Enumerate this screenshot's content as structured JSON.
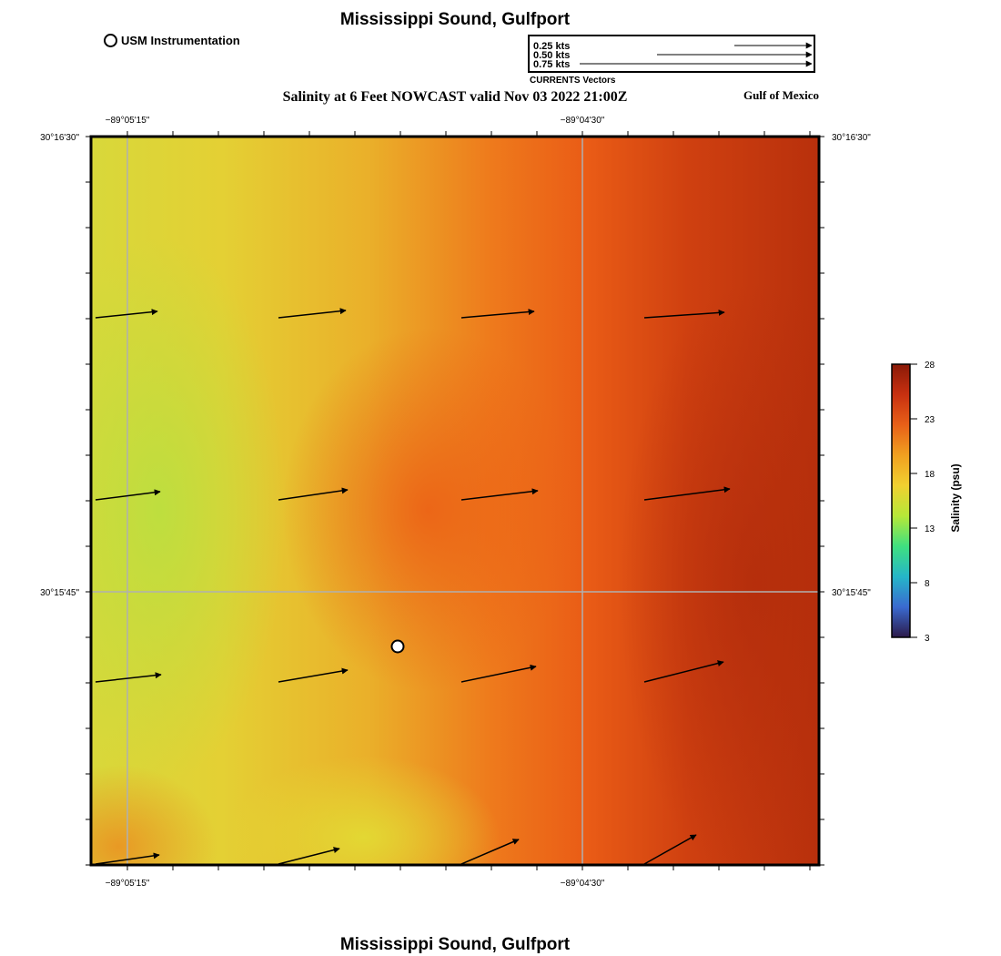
{
  "header": {
    "title": "Mississippi Sound, Gulfport",
    "station_legend": "USM Instrumentation",
    "subtitle": "Salinity at 6 Feet NOWCAST valid Nov 03 2022 21:00Z",
    "region": "Gulf of Mexico"
  },
  "vector_legend": {
    "label": "CURRENTS Vectors",
    "entries": [
      {
        "label": "0.25 kts",
        "speed": 0.25
      },
      {
        "label": "0.50 kts",
        "speed": 0.5
      },
      {
        "label": "0.75 kts",
        "speed": 0.75
      }
    ]
  },
  "axes": {
    "lon_ticks": [
      "−89°05'15\"",
      "−89°04'30\""
    ],
    "lat_ticks": [
      "30°16'30\"",
      "30°15'45\""
    ]
  },
  "colorbar": {
    "label": "Salinity (psu)",
    "ticks": [
      "28",
      "23",
      "18",
      "13",
      "8",
      "3"
    ],
    "min": 3,
    "max": 28,
    "colors": [
      "#2c1a4a",
      "#3a6ad0",
      "#25b6c8",
      "#3fe080",
      "#b6e838",
      "#f0d030",
      "#f0a020",
      "#e86018",
      "#c83010",
      "#8a1a08"
    ]
  },
  "station": {
    "name": "USM Instrumentation"
  },
  "current_vectors": [
    {
      "row": 0,
      "col": 0,
      "dx": 68,
      "dy": -7
    },
    {
      "row": 0,
      "col": 1,
      "dx": 74,
      "dy": -8
    },
    {
      "row": 0,
      "col": 2,
      "dx": 80,
      "dy": -7
    },
    {
      "row": 0,
      "col": 3,
      "dx": 88,
      "dy": -6
    },
    {
      "row": 1,
      "col": 0,
      "dx": 71,
      "dy": -9
    },
    {
      "row": 1,
      "col": 1,
      "dx": 76,
      "dy": -11
    },
    {
      "row": 1,
      "col": 2,
      "dx": 84,
      "dy": -10
    },
    {
      "row": 1,
      "col": 3,
      "dx": 94,
      "dy": -12
    },
    {
      "row": 2,
      "col": 0,
      "dx": 72,
      "dy": -8
    },
    {
      "row": 2,
      "col": 1,
      "dx": 76,
      "dy": -13
    },
    {
      "row": 2,
      "col": 2,
      "dx": 82,
      "dy": -17
    },
    {
      "row": 2,
      "col": 3,
      "dx": 87,
      "dy": -22
    },
    {
      "row": 3,
      "col": 0,
      "dx": 70,
      "dy": -10
    },
    {
      "row": 3,
      "col": 1,
      "dx": 67,
      "dy": -17
    },
    {
      "row": 3,
      "col": 2,
      "dx": 63,
      "dy": -27
    },
    {
      "row": 3,
      "col": 3,
      "dx": 57,
      "dy": -32
    }
  ]
}
